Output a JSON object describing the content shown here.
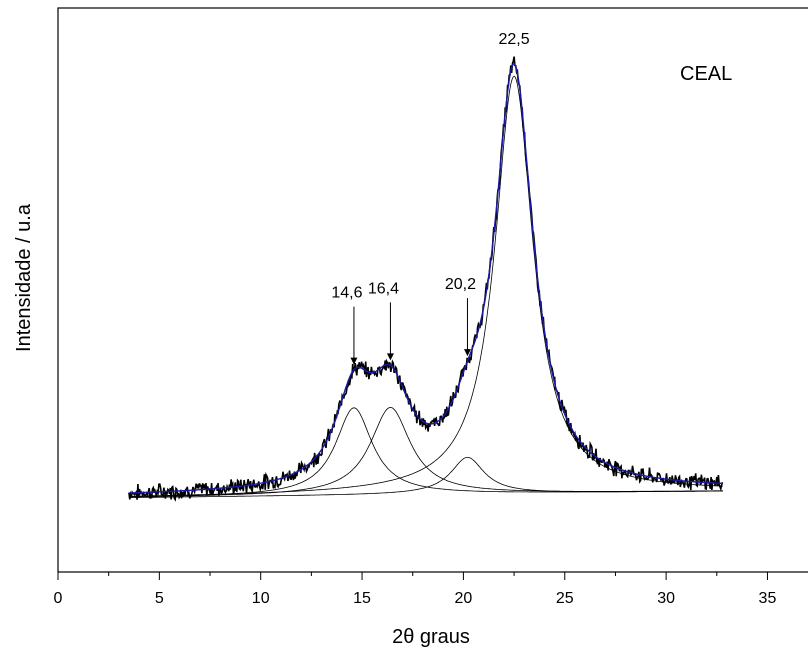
{
  "chart_data": {
    "type": "line",
    "title": "",
    "xlabel": "2θ graus",
    "ylabel": "Intensidade / u.a",
    "xlim": [
      0,
      37
    ],
    "ylim": [
      0,
      100
    ],
    "y_tick_labels_shown": false,
    "x_ticks": [
      0,
      5,
      10,
      15,
      20,
      25,
      30,
      35
    ],
    "x_tick_labels": [
      "0",
      "5",
      "10",
      "15",
      "20",
      "25",
      "30",
      "35"
    ],
    "sample_label": "CEAL",
    "annotations": [
      {
        "text": "14,6",
        "x": 14.6,
        "arrow": true
      },
      {
        "text": "16,4",
        "x": 16.4,
        "arrow": true
      },
      {
        "text": "20,2",
        "x": 20.2,
        "arrow": true
      },
      {
        "text": "22,5",
        "x": 22.5,
        "arrow": false
      }
    ],
    "baseline": 13.5,
    "components": [
      {
        "center": 14.6,
        "amplitude": 15.5,
        "width": 1.1
      },
      {
        "center": 16.4,
        "amplitude": 15.5,
        "width": 1.2
      },
      {
        "center": 20.2,
        "amplitude": 6.5,
        "width": 1.0
      },
      {
        "center": 22.5,
        "amplitude": 74.0,
        "width": 1.15
      }
    ],
    "series": [
      {
        "values_note": "",
        "color": "#000000"
      },
      {
        "values_note": "",
        "color": "#1a1aa6"
      }
    ],
    "experimental_x_range": [
      3.5,
      32.8
    ],
    "colors": {
      "experimental": "#000000",
      "fit": "#1a1aa6",
      "components": "#000000"
    }
  }
}
